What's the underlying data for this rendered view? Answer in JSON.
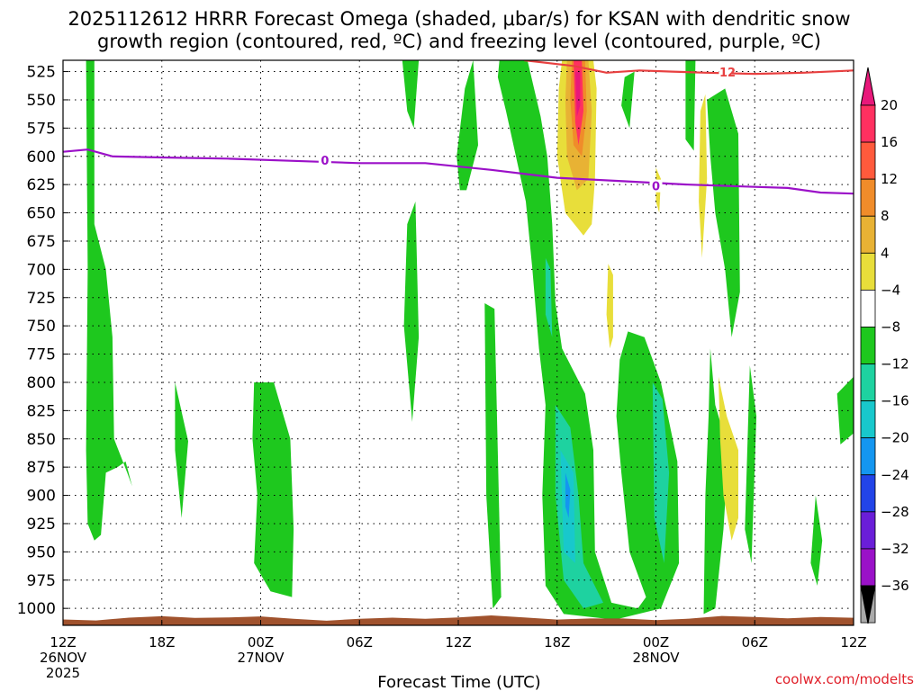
{
  "chart_data": {
    "type": "heatmap",
    "title_line1": "2025112612 HRRR Forecast Omega (shaded, μbar/s) for KSAN with dendritic snow",
    "title_line2": "growth region (contoured, red, ºC) and freezing level (contoured, purple, ºC)",
    "xlabel": "Forecast Time (UTC)",
    "x_ticks": [
      {
        "top": "12Z",
        "mid": "26NOV",
        "bot": "2025"
      },
      {
        "top": "18Z",
        "mid": "",
        "bot": ""
      },
      {
        "top": "00Z",
        "mid": "27NOV",
        "bot": ""
      },
      {
        "top": "06Z",
        "mid": "",
        "bot": ""
      },
      {
        "top": "12Z",
        "mid": "",
        "bot": ""
      },
      {
        "top": "18Z",
        "mid": "",
        "bot": ""
      },
      {
        "top": "00Z",
        "mid": "28NOV",
        "bot": ""
      },
      {
        "top": "06Z",
        "mid": "",
        "bot": ""
      },
      {
        "top": "12Z",
        "mid": "",
        "bot": ""
      }
    ],
    "x_range_hours": [
      0,
      48
    ],
    "y_ticks": [
      "525",
      "550",
      "575",
      "600",
      "625",
      "650",
      "675",
      "700",
      "725",
      "750",
      "775",
      "800",
      "825",
      "850",
      "875",
      "900",
      "925",
      "950",
      "975",
      "1000"
    ],
    "y_range_hpa": [
      515,
      1015
    ],
    "grid": true,
    "colorbar": {
      "labels": [
        "20",
        "16",
        "12",
        "8",
        "4",
        "−4",
        "−8",
        "−12",
        "−16",
        "−20",
        "−24",
        "−28",
        "−32",
        "−36"
      ],
      "colors": [
        "#ff3060",
        "#ff5a3c",
        "#f08c2a",
        "#e8b234",
        "#e8de3a",
        "#ffffff",
        "#1ec81e",
        "#1ed2a0",
        "#18c8cc",
        "#1496f0",
        "#2244e8",
        "#6a1ed8",
        "#9a12c8",
        "#aaaaaa"
      ],
      "top_color": "#e8187a",
      "bottom_color": "#000000"
    },
    "freezing_level": {
      "label": "0",
      "color": "#9b10c8",
      "points": [
        [
          0,
          596
        ],
        [
          1.5,
          594
        ],
        [
          3,
          600
        ],
        [
          6,
          601
        ],
        [
          10,
          602
        ],
        [
          14,
          604
        ],
        [
          18,
          606
        ],
        [
          22,
          606
        ],
        [
          26,
          612
        ],
        [
          30,
          619
        ],
        [
          34,
          622
        ],
        [
          38,
          625
        ],
        [
          42,
          627
        ],
        [
          44,
          628
        ],
        [
          46,
          632
        ],
        [
          48,
          633
        ]
      ]
    },
    "dgz_contour": {
      "label": "-12",
      "color": "#e84040",
      "points": [
        [
          28,
          515
        ],
        [
          31,
          520
        ],
        [
          33,
          526
        ],
        [
          35,
          524
        ],
        [
          37,
          525
        ],
        [
          39,
          526
        ],
        [
          42,
          527
        ],
        [
          45,
          526
        ],
        [
          48,
          524
        ]
      ]
    },
    "terrain_color": "#a0522d",
    "omega_regions": [
      {
        "c": "#1ec81e",
        "p": [
          [
            1.4,
            515
          ],
          [
            1.9,
            515
          ],
          [
            1.9,
            660
          ],
          [
            2.6,
            700
          ],
          [
            3.0,
            760
          ],
          [
            3.1,
            850
          ],
          [
            3.9,
            880
          ],
          [
            4.2,
            892
          ],
          [
            3.8,
            870
          ],
          [
            3.3,
            875
          ],
          [
            2.6,
            880
          ],
          [
            2.3,
            935
          ],
          [
            1.9,
            940
          ],
          [
            1.5,
            925
          ],
          [
            1.4,
            860
          ],
          [
            1.5,
            700
          ]
        ]
      },
      {
        "c": "#1ec81e",
        "p": [
          [
            6.8,
            800
          ],
          [
            7.6,
            852
          ],
          [
            7.2,
            920
          ],
          [
            6.8,
            860
          ]
        ]
      },
      {
        "c": "#1ec81e",
        "p": [
          [
            11.6,
            800
          ],
          [
            12.8,
            800
          ],
          [
            13.8,
            850
          ],
          [
            14.0,
            930
          ],
          [
            13.9,
            990
          ],
          [
            12.6,
            985
          ],
          [
            11.6,
            960
          ],
          [
            11.8,
            900
          ],
          [
            11.5,
            850
          ]
        ]
      },
      {
        "c": "#1ec81e",
        "p": [
          [
            20.9,
            660
          ],
          [
            21.4,
            640
          ],
          [
            21.6,
            760
          ],
          [
            21.2,
            835
          ],
          [
            20.7,
            750
          ]
        ]
      },
      {
        "c": "#1ec81e",
        "p": [
          [
            20.6,
            515
          ],
          [
            21.6,
            515
          ],
          [
            21.3,
            575
          ],
          [
            20.9,
            560
          ]
        ]
      },
      {
        "c": "#1ec81e",
        "p": [
          [
            23.9,
            600
          ],
          [
            24.4,
            540
          ],
          [
            24.9,
            515
          ],
          [
            25.2,
            590
          ],
          [
            24.5,
            630
          ],
          [
            24.1,
            630
          ]
        ]
      },
      {
        "c": "#1ec81e",
        "p": [
          [
            25.6,
            730
          ],
          [
            26.2,
            735
          ],
          [
            26.6,
            990
          ],
          [
            26.1,
            1000
          ],
          [
            25.7,
            900
          ]
        ]
      },
      {
        "c": "#1ec81e",
        "p": [
          [
            26.5,
            515
          ],
          [
            28.2,
            515
          ],
          [
            29.0,
            565
          ],
          [
            29.4,
            600
          ],
          [
            29.7,
            660
          ],
          [
            29.9,
            730
          ],
          [
            30.3,
            770
          ],
          [
            31.0,
            790
          ],
          [
            31.7,
            810
          ],
          [
            32.2,
            860
          ],
          [
            32.3,
            950
          ],
          [
            33.3,
            995
          ],
          [
            34.9,
            1000
          ],
          [
            35.4,
            990
          ],
          [
            34.4,
            950
          ],
          [
            33.9,
            880
          ],
          [
            33.6,
            830
          ],
          [
            33.8,
            780
          ],
          [
            34.3,
            755
          ],
          [
            35.3,
            760
          ],
          [
            36.3,
            800
          ],
          [
            37.3,
            870
          ],
          [
            37.4,
            960
          ],
          [
            36.3,
            1000
          ],
          [
            33.5,
            1010
          ],
          [
            30.4,
            1005
          ],
          [
            29.3,
            980
          ],
          [
            29.1,
            900
          ],
          [
            29.3,
            820
          ],
          [
            28.9,
            770
          ],
          [
            28.5,
            700
          ],
          [
            28.1,
            640
          ],
          [
            27.5,
            600
          ],
          [
            26.9,
            560
          ],
          [
            26.4,
            530
          ]
        ]
      },
      {
        "c": "#1ec81e",
        "p": [
          [
            34.1,
            530
          ],
          [
            34.7,
            525
          ],
          [
            34.4,
            575
          ],
          [
            33.9,
            555
          ]
        ]
      },
      {
        "c": "#1ec81e",
        "p": [
          [
            37.8,
            515
          ],
          [
            38.4,
            515
          ],
          [
            38.3,
            595
          ],
          [
            37.8,
            585
          ]
        ]
      },
      {
        "c": "#1ec81e",
        "p": [
          [
            39.1,
            550
          ],
          [
            40.2,
            540
          ],
          [
            41.0,
            580
          ],
          [
            41.1,
            720
          ],
          [
            40.6,
            760
          ],
          [
            40.2,
            700
          ],
          [
            39.6,
            650
          ],
          [
            39.3,
            600
          ]
        ]
      },
      {
        "c": "#1ec81e",
        "p": [
          [
            39.3,
            770
          ],
          [
            39.6,
            820
          ],
          [
            40.4,
            860
          ],
          [
            40.1,
            930
          ],
          [
            39.6,
            1000
          ],
          [
            38.9,
            1005
          ],
          [
            39.0,
            900
          ],
          [
            39.2,
            830
          ]
        ]
      },
      {
        "c": "#1ec81e",
        "p": [
          [
            41.7,
            785
          ],
          [
            42.1,
            830
          ],
          [
            41.8,
            960
          ],
          [
            41.4,
            930
          ]
        ]
      },
      {
        "c": "#1ec81e",
        "p": [
          [
            45.7,
            900
          ],
          [
            46.1,
            940
          ],
          [
            45.8,
            980
          ],
          [
            45.4,
            960
          ]
        ]
      },
      {
        "c": "#1ec81e",
        "p": [
          [
            47.0,
            810
          ],
          [
            48.0,
            795
          ],
          [
            48.0,
            845
          ],
          [
            47.2,
            855
          ]
        ]
      },
      {
        "c": "#1ed2a0",
        "p": [
          [
            29.9,
            820
          ],
          [
            30.8,
            840
          ],
          [
            31.3,
            900
          ],
          [
            31.6,
            960
          ],
          [
            32.8,
            995
          ],
          [
            31.6,
            1000
          ],
          [
            30.4,
            975
          ],
          [
            29.9,
            900
          ]
        ]
      },
      {
        "c": "#18c8cc",
        "p": [
          [
            30.2,
            860
          ],
          [
            31.0,
            880
          ],
          [
            31.1,
            960
          ],
          [
            30.4,
            950
          ]
        ]
      },
      {
        "c": "#1496f0",
        "p": [
          [
            30.5,
            880
          ],
          [
            30.8,
            895
          ],
          [
            30.7,
            920
          ],
          [
            30.5,
            910
          ]
        ]
      },
      {
        "c": "#1ed2a0",
        "p": [
          [
            29.3,
            690
          ],
          [
            29.6,
            700
          ],
          [
            29.7,
            760
          ],
          [
            29.3,
            740
          ]
        ]
      },
      {
        "c": "#1ed2a0",
        "p": [
          [
            35.8,
            800
          ],
          [
            36.4,
            815
          ],
          [
            36.8,
            880
          ],
          [
            36.5,
            960
          ],
          [
            35.9,
            920
          ]
        ]
      },
      {
        "c": "#e8de3a",
        "p": [
          [
            30.3,
            515
          ],
          [
            32.2,
            515
          ],
          [
            32.4,
            540
          ],
          [
            32.3,
            620
          ],
          [
            32.1,
            660
          ],
          [
            31.6,
            670
          ],
          [
            30.5,
            650
          ],
          [
            30.0,
            600
          ],
          [
            30.1,
            540
          ]
        ]
      },
      {
        "c": "#e8b234",
        "p": [
          [
            30.6,
            515
          ],
          [
            31.9,
            515
          ],
          [
            32.1,
            560
          ],
          [
            31.9,
            620
          ],
          [
            31.2,
            630
          ],
          [
            30.6,
            600
          ],
          [
            30.5,
            550
          ]
        ]
      },
      {
        "c": "#f08c2a",
        "p": [
          [
            30.9,
            515
          ],
          [
            31.7,
            515
          ],
          [
            31.8,
            560
          ],
          [
            31.5,
            600
          ],
          [
            31.0,
            590
          ],
          [
            30.8,
            550
          ]
        ]
      },
      {
        "c": "#ff3060",
        "p": [
          [
            31.0,
            515
          ],
          [
            31.5,
            515
          ],
          [
            31.6,
            560
          ],
          [
            31.3,
            590
          ],
          [
            31.1,
            570
          ]
        ]
      },
      {
        "c": "#e8187a",
        "p": [
          [
            31.1,
            525
          ],
          [
            31.4,
            525
          ],
          [
            31.4,
            555
          ],
          [
            31.2,
            565
          ]
        ]
      },
      {
        "c": "#e8de3a",
        "p": [
          [
            33.1,
            695
          ],
          [
            33.4,
            705
          ],
          [
            33.4,
            760
          ],
          [
            33.2,
            770
          ],
          [
            33.0,
            740
          ]
        ]
      },
      {
        "c": "#e8de3a",
        "p": [
          [
            36.0,
            610
          ],
          [
            36.3,
            620
          ],
          [
            36.2,
            650
          ],
          [
            36.0,
            640
          ]
        ]
      },
      {
        "c": "#e8de3a",
        "p": [
          [
            38.7,
            560
          ],
          [
            39.0,
            545
          ],
          [
            39.1,
            620
          ],
          [
            38.8,
            690
          ],
          [
            38.6,
            640
          ]
        ]
      },
      {
        "c": "#e8de3a",
        "p": [
          [
            39.8,
            795
          ],
          [
            40.3,
            830
          ],
          [
            41.0,
            860
          ],
          [
            41.0,
            920
          ],
          [
            40.6,
            940
          ],
          [
            40.1,
            900
          ],
          [
            39.9,
            850
          ]
        ]
      }
    ]
  },
  "credit": "coolwx.com/modelts"
}
